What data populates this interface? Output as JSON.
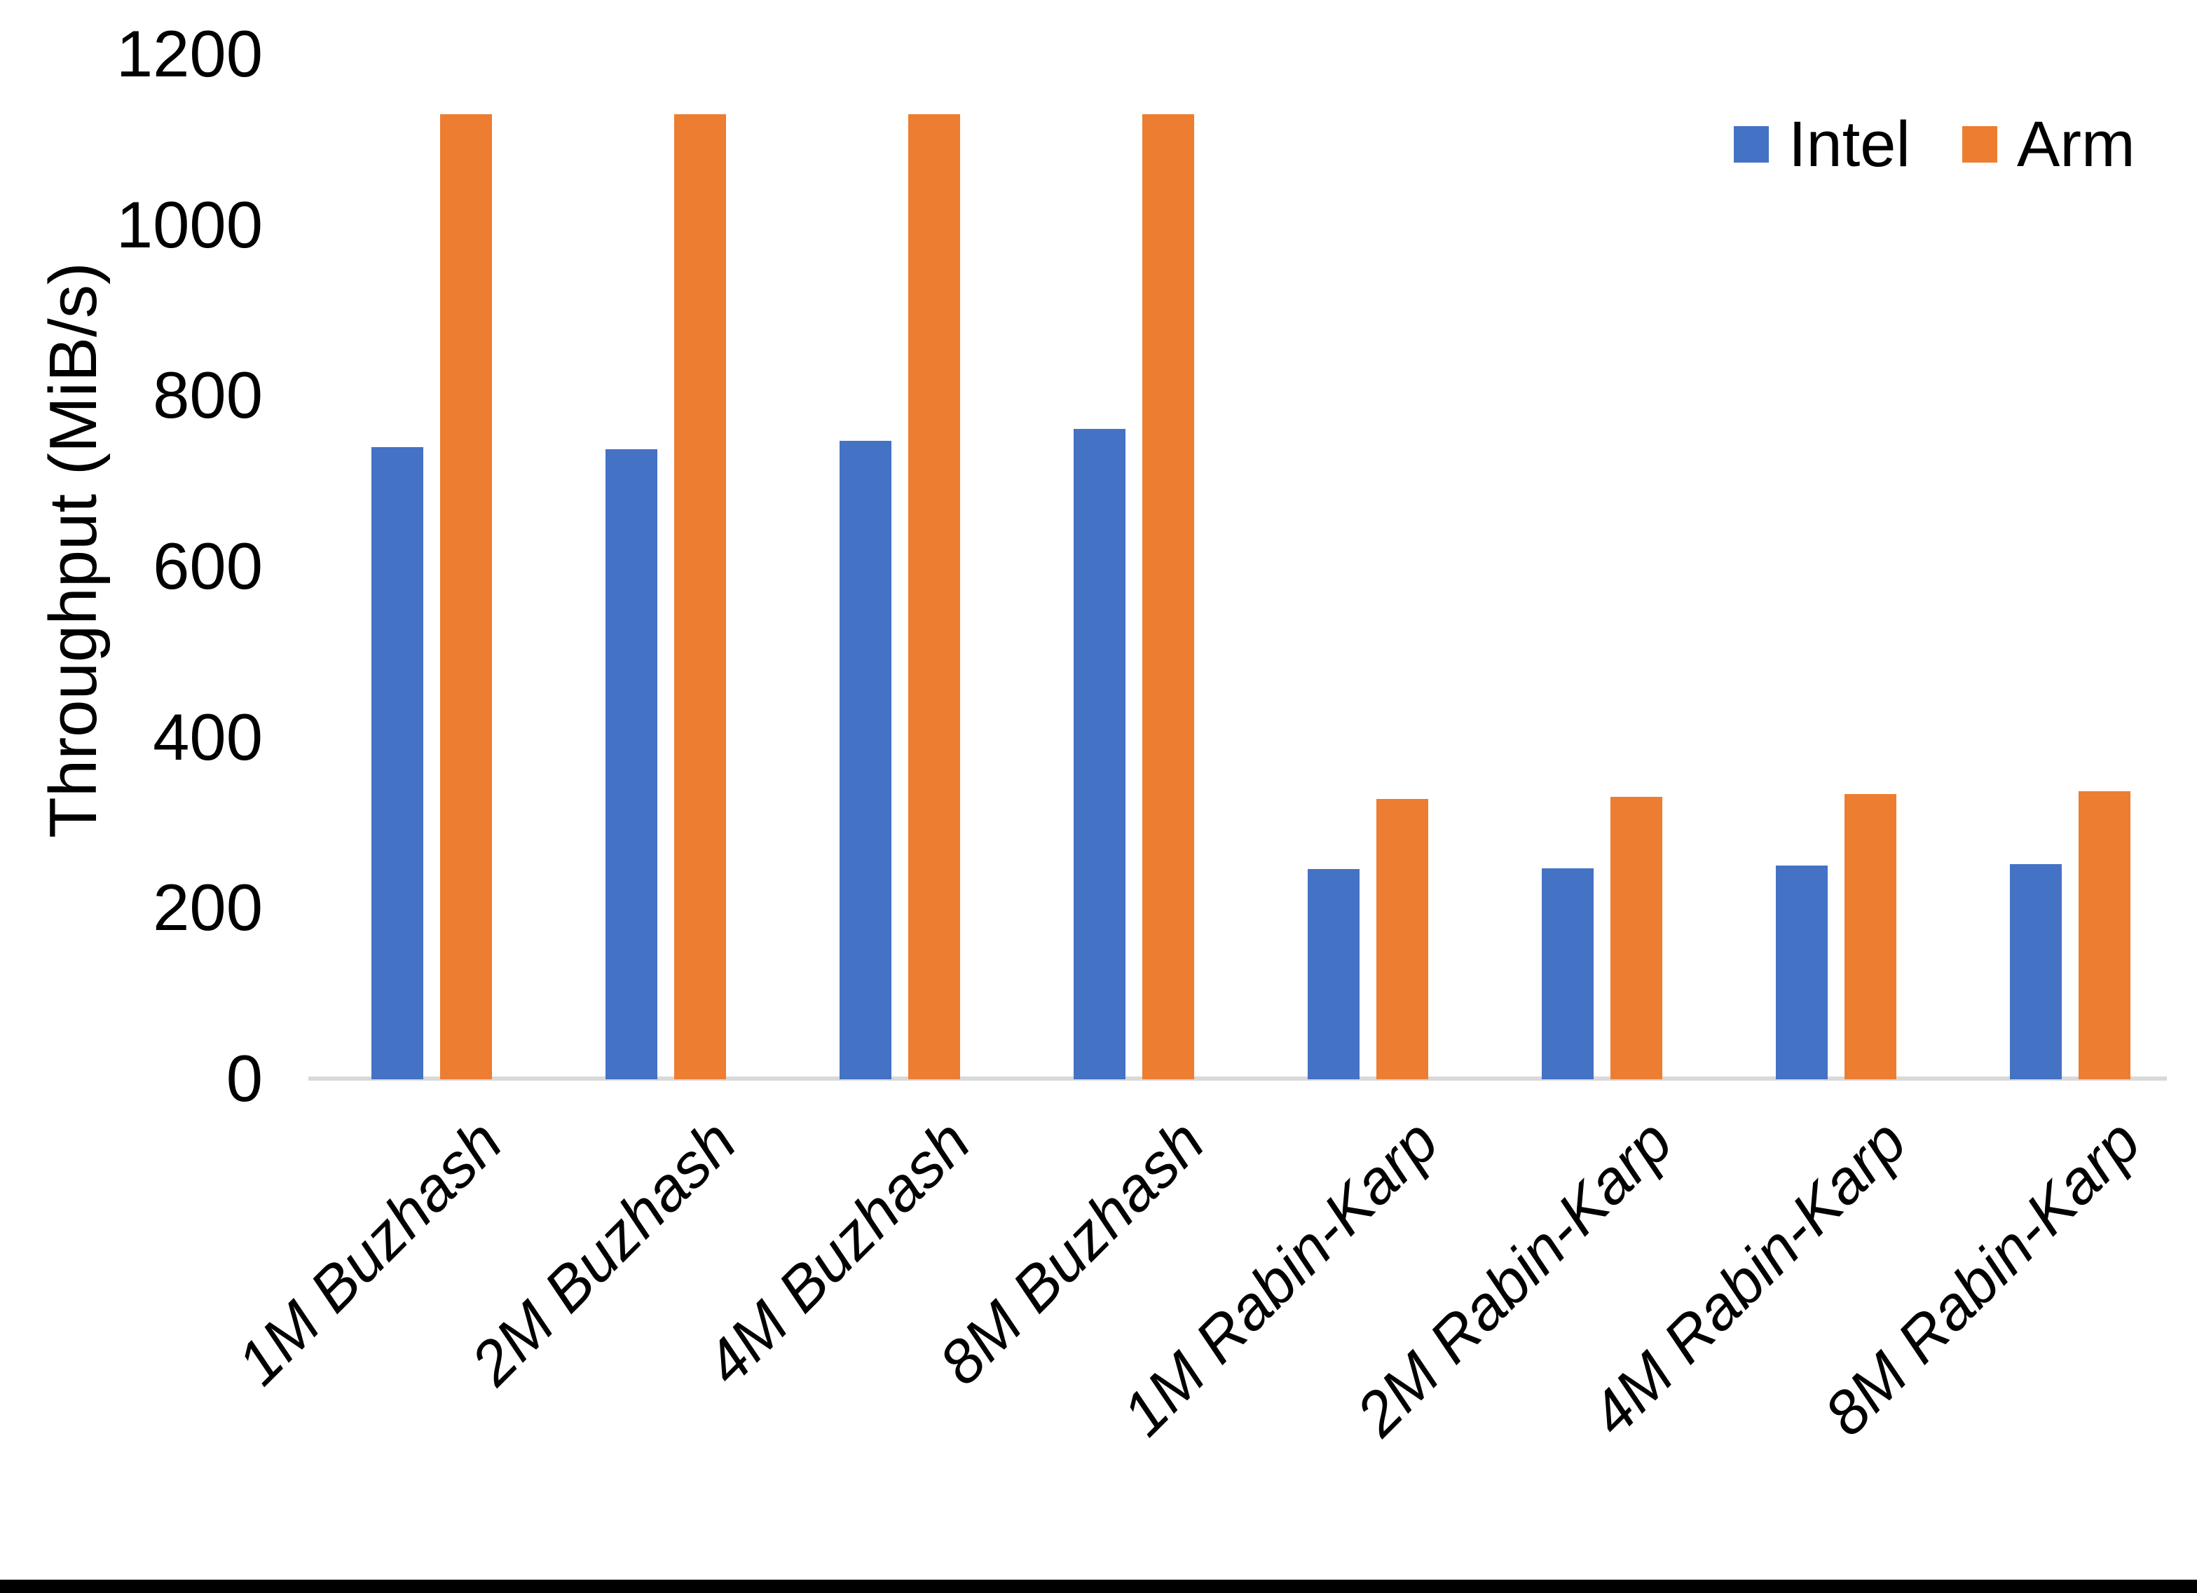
{
  "page": {
    "background": "#FFFFFF",
    "bottom_edge_bar_color": "#000000"
  },
  "chart_data": {
    "type": "bar",
    "title": "",
    "xlabel": "",
    "ylabel": "Throughput (MiB/s)",
    "ylim": [
      0,
      1200
    ],
    "yticks": [
      0,
      200,
      400,
      600,
      800,
      1000,
      1200
    ],
    "grid": false,
    "legend_position": "top-right",
    "axis_line_color": "#D9D9D9",
    "text_color": "#000000",
    "categories": [
      "1M Buzhash",
      "2M Buzhash",
      "4M Buzhash",
      "8M Buzhash",
      "1M Rabin-Karp",
      "2M Rabin-Karp",
      "4M Rabin-Karp",
      "8M Rabin-Karp"
    ],
    "series": [
      {
        "name": "Intel",
        "color": "#4472C4",
        "values": [
          740,
          738,
          748,
          762,
          246,
          247,
          250,
          252
        ]
      },
      {
        "name": "Arm",
        "color": "#ED7D31",
        "values": [
          1130,
          1130,
          1130,
          1130,
          328,
          331,
          334,
          337
        ]
      }
    ]
  }
}
